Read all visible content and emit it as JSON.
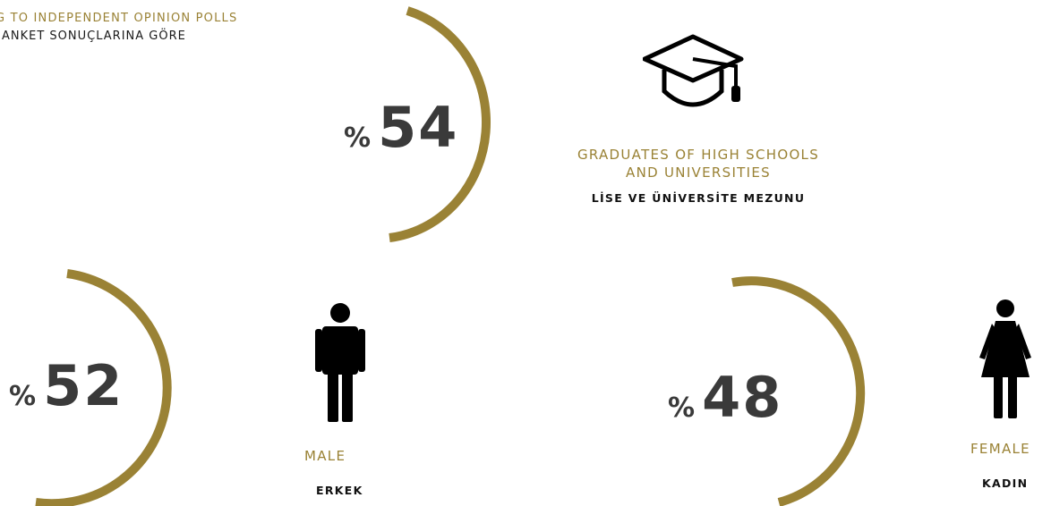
{
  "header": {
    "english": "G TO INDEPENDENT OPINION POLLS",
    "turkish": "ANKET SONUÇLARINA GÖRE"
  },
  "stats": [
    {
      "id": "graduates",
      "percent_sign": "%",
      "value": "54",
      "label_en_line1": "GRADUATES OF HIGH SCHOOLS",
      "label_en_line2": "AND UNIVERSITIES",
      "label_tr": "LİSE VE ÜNİVERSİTE MEZUNU",
      "icon": "graduation-cap-icon"
    },
    {
      "id": "male",
      "percent_sign": "%",
      "value": "52",
      "label_en": "MALE",
      "label_tr": "ERKEK",
      "icon": "male-person-icon"
    },
    {
      "id": "female",
      "percent_sign": "%",
      "value": "48",
      "label_en": "FEMALE",
      "label_tr": "KADIN",
      "icon": "female-person-icon"
    }
  ],
  "colors": {
    "accent_gold": "#9a8235",
    "number_gray": "#3a3a3a",
    "icon_black": "#000000"
  }
}
